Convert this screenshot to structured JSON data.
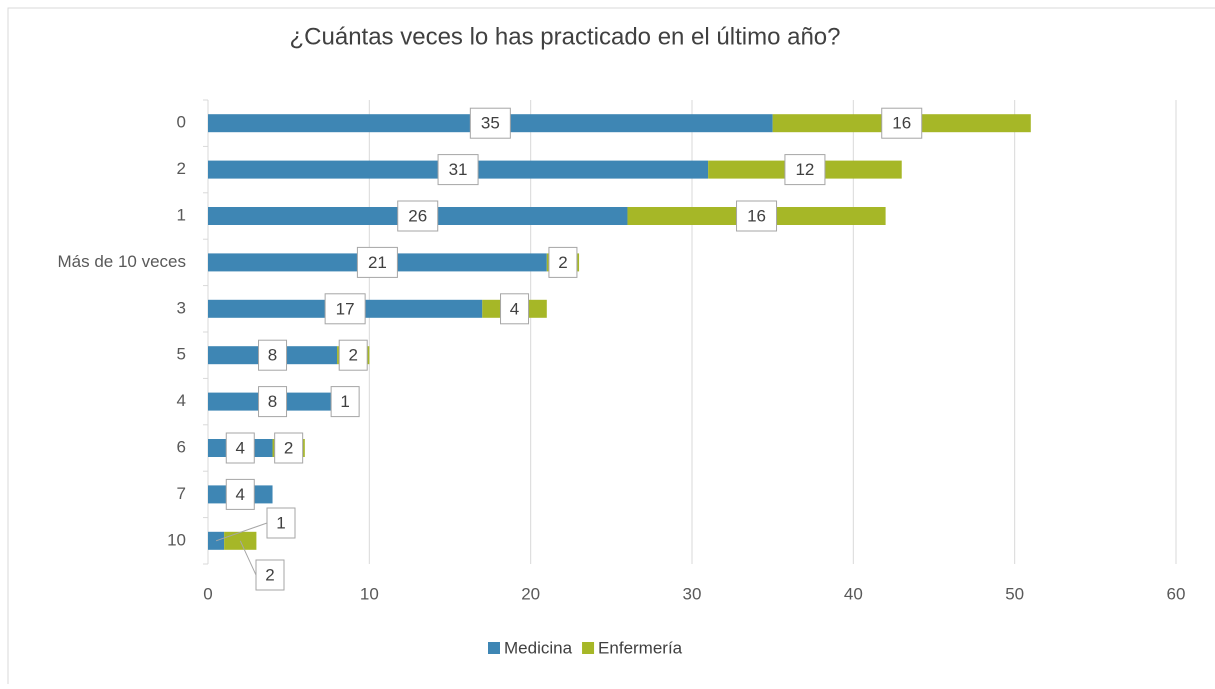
{
  "chart_data": {
    "type": "stacked-bar-horizontal",
    "title": "¿Cuántas veces lo has practicado en el último año?",
    "categories": [
      "0",
      "2",
      "1",
      "Más de 10 veces",
      "3",
      "5",
      "4",
      "6",
      "7",
      "10"
    ],
    "series": [
      {
        "name": "Medicina",
        "color": "#3e86b4",
        "values": [
          35,
          31,
          26,
          21,
          17,
          8,
          8,
          4,
          4,
          1
        ]
      },
      {
        "name": "Enfermería",
        "color": "#a6b727",
        "values": [
          16,
          12,
          16,
          2,
          4,
          2,
          1,
          2,
          null,
          2
        ]
      }
    ],
    "xlim": [
      0,
      60
    ],
    "xticks": [
      0,
      10,
      20,
      30,
      40,
      50,
      60
    ],
    "grid": true,
    "legend": "bottom"
  }
}
